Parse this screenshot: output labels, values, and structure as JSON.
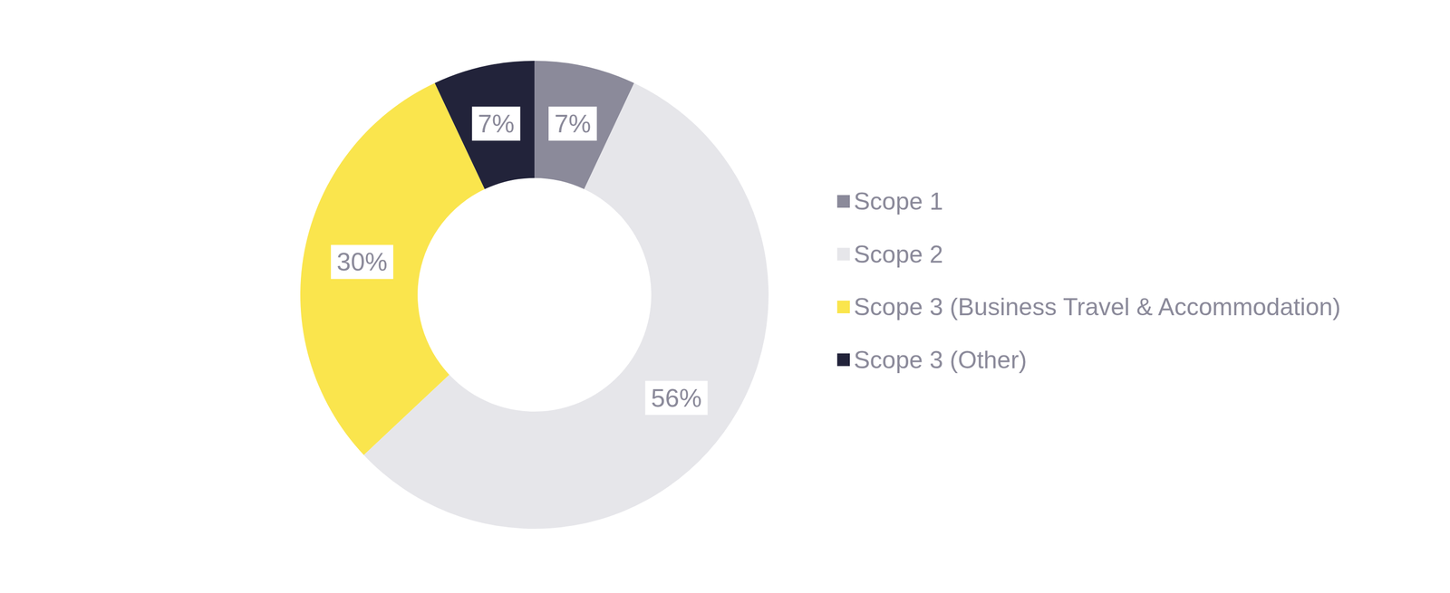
{
  "chart_data": {
    "type": "pie",
    "categories": [
      "Scope 1",
      "Scope 2",
      "Scope 3 (Business Travel & Accommodation)",
      "Scope 3 (Other)"
    ],
    "values": [
      7,
      56,
      30,
      7
    ],
    "value_labels": [
      "7%",
      "56%",
      "30%",
      "7%"
    ],
    "colors": [
      "#8b8a9a",
      "#e6e6ea",
      "#fae54d",
      "#22233a"
    ],
    "data_labels": true,
    "legend": "right"
  }
}
